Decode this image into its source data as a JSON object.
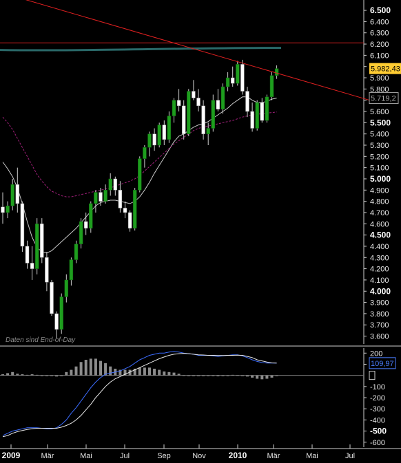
{
  "watermark": "Daten sind End-of-Day",
  "price_labels": {
    "last_price": "5.982,43",
    "ma_value": "5.719,2",
    "ma_color": "#aaaaaa",
    "last_color": "#ffcc33"
  },
  "indicator_labels": {
    "value": "109,97",
    "value_color": "#4a7dff"
  },
  "colors": {
    "background": "#000000",
    "up_candle": "#1e9e1e",
    "down_candle": "#ffffff",
    "wick": "#cfcfcf",
    "trendline": "#e02020",
    "resistance": "#e02020",
    "long_ma": "#2a6a6a",
    "ma_fast": "#c8c8c8",
    "ma_slow": "#a0207a",
    "macd": "#3b6cff",
    "signal": "#e8e8e8",
    "histogram": "#8c8c8c"
  },
  "chart_data": [
    {
      "type": "candlestick",
      "title": "",
      "x_ticks": [
        "2009",
        "Mär",
        "Mai",
        "Jul",
        "Sep",
        "Nov",
        "2010",
        "Mär",
        "Mai",
        "Jul"
      ],
      "x_tick_bold": [
        true,
        false,
        false,
        false,
        false,
        false,
        true,
        false,
        false,
        false
      ],
      "y_ticks": [
        "3.600",
        "3.700",
        "3.800",
        "3.900",
        "4.000",
        "4.100",
        "4.200",
        "4.300",
        "4.400",
        "4.500",
        "4.600",
        "4.700",
        "4.800",
        "4.900",
        "5.000",
        "5.100",
        "5.200",
        "5.300",
        "5.400",
        "5.500",
        "5.600",
        "5.700",
        "5.800",
        "5.900",
        "6.000",
        "6.100",
        "6.200",
        "6.300",
        "6.400",
        "6.500"
      ],
      "y_tick_values": [
        3600,
        3700,
        3800,
        3900,
        4000,
        4100,
        4200,
        4300,
        4400,
        4500,
        4600,
        4700,
        4800,
        4900,
        5000,
        5100,
        5200,
        5300,
        5400,
        5500,
        5600,
        5700,
        5800,
        5900,
        6000,
        6100,
        6200,
        6300,
        6400,
        6500
      ],
      "y_tick_bold": [
        false,
        false,
        false,
        false,
        true,
        false,
        false,
        false,
        false,
        true,
        false,
        false,
        false,
        false,
        true,
        false,
        false,
        false,
        false,
        true,
        false,
        false,
        false,
        false,
        false,
        false,
        false,
        false,
        false,
        true
      ],
      "ylim": [
        3530,
        6580
      ],
      "resistance_level": 6210,
      "long_ma_level": 6160,
      "candles": [
        [
          4750,
          4880,
          4600,
          4700
        ],
        [
          4700,
          4800,
          4650,
          4760
        ],
        [
          4760,
          5000,
          4720,
          4950
        ],
        [
          4950,
          5100,
          4700,
          4780
        ],
        [
          4780,
          4800,
          4350,
          4400
        ],
        [
          4400,
          4450,
          4200,
          4250
        ],
        [
          4250,
          4400,
          4100,
          4200
        ],
        [
          4200,
          4650,
          4150,
          4600
        ],
        [
          4600,
          4650,
          4250,
          4300
        ],
        [
          4300,
          4350,
          4000,
          4080
        ],
        [
          4080,
          4100,
          3780,
          3800
        ],
        [
          3800,
          3820,
          3580,
          3660
        ],
        [
          3660,
          3980,
          3620,
          3950
        ],
        [
          3950,
          4150,
          3900,
          4100
        ],
        [
          4100,
          4300,
          4050,
          4280
        ],
        [
          4280,
          4450,
          4250,
          4420
        ],
        [
          4420,
          4650,
          4380,
          4620
        ],
        [
          4620,
          4700,
          4500,
          4560
        ],
        [
          4560,
          4800,
          4520,
          4780
        ],
        [
          4780,
          4900,
          4700,
          4880
        ],
        [
          4880,
          4920,
          4760,
          4800
        ],
        [
          4800,
          4950,
          4780,
          4900
        ],
        [
          4900,
          5050,
          4850,
          5000
        ],
        [
          5000,
          5020,
          4850,
          4900
        ],
        [
          4900,
          4980,
          4700,
          4740
        ],
        [
          4740,
          4800,
          4650,
          4700
        ],
        [
          4700,
          4720,
          4530,
          4560
        ],
        [
          4560,
          4920,
          4540,
          4900
        ],
        [
          4900,
          5200,
          4880,
          5180
        ],
        [
          5180,
          5300,
          5100,
          5280
        ],
        [
          5280,
          5420,
          5200,
          5400
        ],
        [
          5400,
          5450,
          5250,
          5300
        ],
        [
          5300,
          5500,
          5280,
          5480
        ],
        [
          5480,
          5520,
          5300,
          5350
        ],
        [
          5350,
          5600,
          5320,
          5560
        ],
        [
          5560,
          5720,
          5500,
          5700
        ],
        [
          5700,
          5800,
          5600,
          5650
        ],
        [
          5650,
          5700,
          5350,
          5400
        ],
        [
          5400,
          5800,
          5380,
          5780
        ],
        [
          5780,
          5880,
          5700,
          5720
        ],
        [
          5720,
          5800,
          5600,
          5650
        ],
        [
          5650,
          5700,
          5350,
          5400
        ],
        [
          5400,
          5500,
          5300,
          5450
        ],
        [
          5450,
          5750,
          5420,
          5700
        ],
        [
          5700,
          5800,
          5600,
          5620
        ],
        [
          5620,
          5850,
          5580,
          5820
        ],
        [
          5820,
          5950,
          5780,
          5900
        ],
        [
          5900,
          6000,
          5820,
          5850
        ],
        [
          5850,
          6050,
          5830,
          6020
        ],
        [
          6020,
          6060,
          5750,
          5780
        ],
        [
          5780,
          5820,
          5550,
          5600
        ],
        [
          5600,
          5680,
          5420,
          5450
        ],
        [
          5450,
          5700,
          5430,
          5680
        ],
        [
          5680,
          5720,
          5500,
          5520
        ],
        [
          5520,
          5750,
          5500,
          5730
        ],
        [
          5730,
          5950,
          5700,
          5920
        ],
        [
          5920,
          6010,
          5890,
          5982
        ]
      ],
      "series": [
        {
          "name": "",
          "values": [
            5150,
            5090,
            5020,
            4920,
            4780,
            4620,
            4480,
            4390,
            4350,
            4340,
            4360,
            4400,
            4440,
            4480,
            4520,
            4560,
            4610,
            4660,
            4710,
            4760,
            4790,
            4800,
            4810,
            4810,
            4800,
            4790,
            4780,
            4800,
            4840,
            4900,
            4970,
            5050,
            5120,
            5190,
            5260,
            5330,
            5380,
            5400,
            5430,
            5460,
            5480,
            5490,
            5510,
            5540,
            5570,
            5600,
            5630,
            5670,
            5700,
            5730,
            5730,
            5700,
            5680,
            5680,
            5690,
            5710,
            5719
          ]
        },
        {
          "name": "",
          "values": [
            5550,
            5500,
            5440,
            5360,
            5280,
            5200,
            5120,
            5040,
            4980,
            4930,
            4890,
            4870,
            4850,
            4840,
            4840,
            4850,
            4860,
            4870,
            4880,
            4890,
            4900,
            4910,
            4920,
            4935,
            4950,
            4965,
            4980,
            5000,
            5030,
            5070,
            5110,
            5150,
            5190,
            5230,
            5270,
            5310,
            5340,
            5370,
            5400,
            5430,
            5450,
            5460,
            5470,
            5480,
            5490,
            5500,
            5510,
            5520,
            5535,
            5550,
            5560,
            5570,
            5575,
            5580,
            5585,
            5590,
            5595
          ]
        }
      ],
      "trendline": {
        "from": [
          -2,
          6680
        ],
        "to": [
          75,
          5700
        ]
      }
    },
    {
      "type": "line",
      "x_ticks": [],
      "y_ticks": [
        "200",
        "100",
        "-100",
        "-200",
        "-300",
        "-400",
        "-500",
        "-600"
      ],
      "y_tick_values": [
        200,
        100,
        -100,
        -200,
        -300,
        -400,
        -500,
        -600
      ],
      "y_tick_bold": [
        false,
        false,
        false,
        false,
        false,
        false,
        true,
        false
      ],
      "ylim": [
        -620,
        245
      ],
      "series": [
        {
          "name": "",
          "values": [
            -540,
            -520,
            -500,
            -490,
            -480,
            -470,
            -470,
            -470,
            -475,
            -480,
            -480,
            -470,
            -440,
            -400,
            -340,
            -290,
            -230,
            -170,
            -110,
            -60,
            -20,
            10,
            20,
            30,
            40,
            60,
            80,
            110,
            140,
            160,
            180,
            190,
            200,
            200,
            210,
            215,
            210,
            200,
            195,
            190,
            180,
            180,
            180,
            175,
            170,
            175,
            180,
            185,
            185,
            175,
            160,
            140,
            125,
            115,
            110,
            110,
            110
          ]
        },
        {
          "name": "",
          "values": [
            -550,
            -540,
            -520,
            -505,
            -495,
            -485,
            -480,
            -475,
            -475,
            -475,
            -475,
            -475,
            -465,
            -450,
            -430,
            -400,
            -360,
            -310,
            -260,
            -200,
            -150,
            -100,
            -60,
            -30,
            -10,
            10,
            30,
            50,
            70,
            90,
            110,
            130,
            150,
            165,
            180,
            190,
            195,
            198,
            195,
            190,
            185,
            183,
            180,
            180,
            178,
            178,
            180,
            180,
            182,
            180,
            170,
            160,
            140,
            130,
            120,
            112,
            110
          ]
        },
        {
          "name": "",
          "type": "bar",
          "values": [
            10,
            20,
            30,
            15,
            10,
            5,
            10,
            5,
            0,
            -5,
            -5,
            -10,
            -5,
            30,
            50,
            80,
            120,
            140,
            150,
            150,
            130,
            110,
            80,
            60,
            50,
            50,
            50,
            60,
            70,
            70,
            70,
            60,
            50,
            35,
            30,
            25,
            15,
            2,
            0,
            0,
            -5,
            -5,
            0,
            -5,
            -8,
            -3,
            0,
            5,
            3,
            -5,
            -10,
            -20,
            -30,
            -35,
            -30,
            -20,
            -5
          ]
        }
      ]
    }
  ]
}
